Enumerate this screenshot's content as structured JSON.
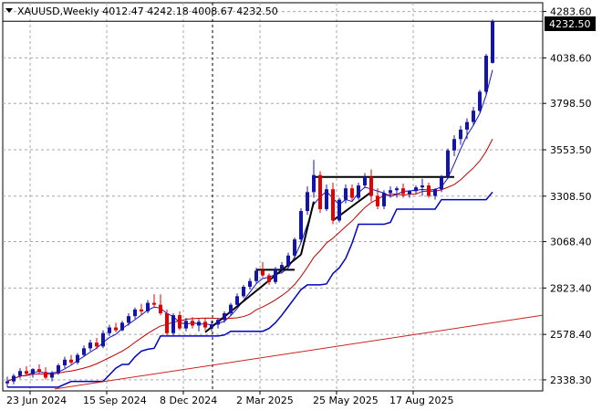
{
  "header": {
    "symbol_line": "XAUUSD,Weekly  4012.47 4242.18 4008.67 4232.50",
    "dropdown_icon": "triangle-down-icon"
  },
  "price_label": "4232.50",
  "colors": {
    "bull": "#1414a8",
    "bear": "#e00000",
    "grid": "#a8a8a8",
    "ma_fast": "#1414c8",
    "ma_mid": "#0000c0",
    "ma_slow": "#c00000",
    "trend": "#cc2222",
    "pattern": "#000000",
    "price_label_bg": "#000000",
    "price_label_fg": "#ffffff"
  },
  "chart_data": {
    "type": "candlestick",
    "title": "XAUUSD,Weekly",
    "ohlc_last": {
      "open": 4012.47,
      "high": 4242.18,
      "low": 4008.67,
      "close": 4232.5
    },
    "ylim": [
      2280,
      4330
    ],
    "y_ticks": [
      "4283.60",
      "4038.60",
      "3798.50",
      "3553.50",
      "3308.50",
      "3068.40",
      "2823.40",
      "2578.40",
      "2338.30"
    ],
    "x_ticks": [
      "23 Jun 2024",
      "15 Sep 2024",
      "8 Dec 2024",
      "2 Mar 2025",
      "25 May 2025",
      "17 Aug 2025"
    ],
    "grid": true,
    "vertical_marker_week": 35,
    "candles": [
      [
        2320,
        2355,
        2300,
        2330
      ],
      [
        2330,
        2370,
        2315,
        2360
      ],
      [
        2360,
        2400,
        2345,
        2385
      ],
      [
        2385,
        2410,
        2360,
        2370
      ],
      [
        2370,
        2400,
        2350,
        2395
      ],
      [
        2395,
        2420,
        2370,
        2380
      ],
      [
        2380,
        2405,
        2340,
        2350
      ],
      [
        2350,
        2385,
        2330,
        2375
      ],
      [
        2375,
        2425,
        2365,
        2415
      ],
      [
        2415,
        2460,
        2400,
        2445
      ],
      [
        2445,
        2470,
        2420,
        2430
      ],
      [
        2430,
        2480,
        2420,
        2470
      ],
      [
        2470,
        2520,
        2460,
        2505
      ],
      [
        2505,
        2550,
        2490,
        2535
      ],
      [
        2535,
        2560,
        2500,
        2515
      ],
      [
        2515,
        2600,
        2505,
        2585
      ],
      [
        2585,
        2630,
        2570,
        2615
      ],
      [
        2615,
        2640,
        2590,
        2600
      ],
      [
        2600,
        2650,
        2595,
        2640
      ],
      [
        2640,
        2690,
        2625,
        2675
      ],
      [
        2675,
        2720,
        2660,
        2710
      ],
      [
        2710,
        2740,
        2680,
        2700
      ],
      [
        2700,
        2760,
        2690,
        2745
      ],
      [
        2745,
        2790,
        2720,
        2735
      ],
      [
        2735,
        2790,
        2680,
        2690
      ],
      [
        2690,
        2710,
        2570,
        2585
      ],
      [
        2585,
        2690,
        2575,
        2680
      ],
      [
        2680,
        2700,
        2600,
        2610
      ],
      [
        2610,
        2665,
        2595,
        2650
      ],
      [
        2650,
        2670,
        2610,
        2625
      ],
      [
        2625,
        2660,
        2595,
        2645
      ],
      [
        2645,
        2665,
        2600,
        2615
      ],
      [
        2615,
        2650,
        2595,
        2630
      ],
      [
        2630,
        2665,
        2610,
        2655
      ],
      [
        2655,
        2700,
        2640,
        2690
      ],
      [
        2690,
        2745,
        2680,
        2735
      ],
      [
        2735,
        2795,
        2725,
        2780
      ],
      [
        2780,
        2840,
        2770,
        2830
      ],
      [
        2830,
        2875,
        2815,
        2860
      ],
      [
        2860,
        2930,
        2850,
        2915
      ],
      [
        2915,
        2960,
        2880,
        2890
      ],
      [
        2890,
        2900,
        2840,
        2855
      ],
      [
        2855,
        2935,
        2845,
        2925
      ],
      [
        2925,
        2960,
        2900,
        2945
      ],
      [
        2945,
        3010,
        2930,
        2995
      ],
      [
        2995,
        3090,
        2980,
        3080
      ],
      [
        3080,
        3245,
        3060,
        3230
      ],
      [
        3230,
        3360,
        3210,
        3330
      ],
      [
        3330,
        3500,
        3300,
        3420
      ],
      [
        3420,
        3440,
        3220,
        3240
      ],
      [
        3240,
        3370,
        3230,
        3345
      ],
      [
        3345,
        3380,
        3160,
        3180
      ],
      [
        3180,
        3300,
        3170,
        3290
      ],
      [
        3290,
        3370,
        3270,
        3350
      ],
      [
        3350,
        3370,
        3280,
        3300
      ],
      [
        3300,
        3380,
        3290,
        3365
      ],
      [
        3365,
        3430,
        3350,
        3410
      ],
      [
        3410,
        3450,
        3280,
        3310
      ],
      [
        3310,
        3350,
        3240,
        3255
      ],
      [
        3255,
        3340,
        3240,
        3325
      ],
      [
        3325,
        3360,
        3300,
        3340
      ],
      [
        3340,
        3360,
        3300,
        3350
      ],
      [
        3350,
        3375,
        3300,
        3320
      ],
      [
        3320,
        3340,
        3300,
        3335
      ],
      [
        3335,
        3365,
        3320,
        3355
      ],
      [
        3355,
        3400,
        3310,
        3365
      ],
      [
        3365,
        3380,
        3300,
        3310
      ],
      [
        3310,
        3350,
        3290,
        3345
      ],
      [
        3345,
        3420,
        3330,
        3410
      ],
      [
        3410,
        3560,
        3400,
        3550
      ],
      [
        3550,
        3630,
        3520,
        3610
      ],
      [
        3610,
        3680,
        3580,
        3660
      ],
      [
        3660,
        3720,
        3610,
        3700
      ],
      [
        3700,
        3780,
        3680,
        3760
      ],
      [
        3760,
        3870,
        3750,
        3860
      ],
      [
        3860,
        4060,
        3840,
        4050
      ],
      [
        4012.47,
        4242.18,
        4008.67,
        4232.5
      ]
    ],
    "overlays": [
      {
        "name": "",
        "color": "#1414c8",
        "values": []
      },
      {
        "name": "",
        "color": "#0000c0",
        "values": []
      },
      {
        "name": "",
        "color": "#c00000",
        "values": []
      }
    ]
  }
}
